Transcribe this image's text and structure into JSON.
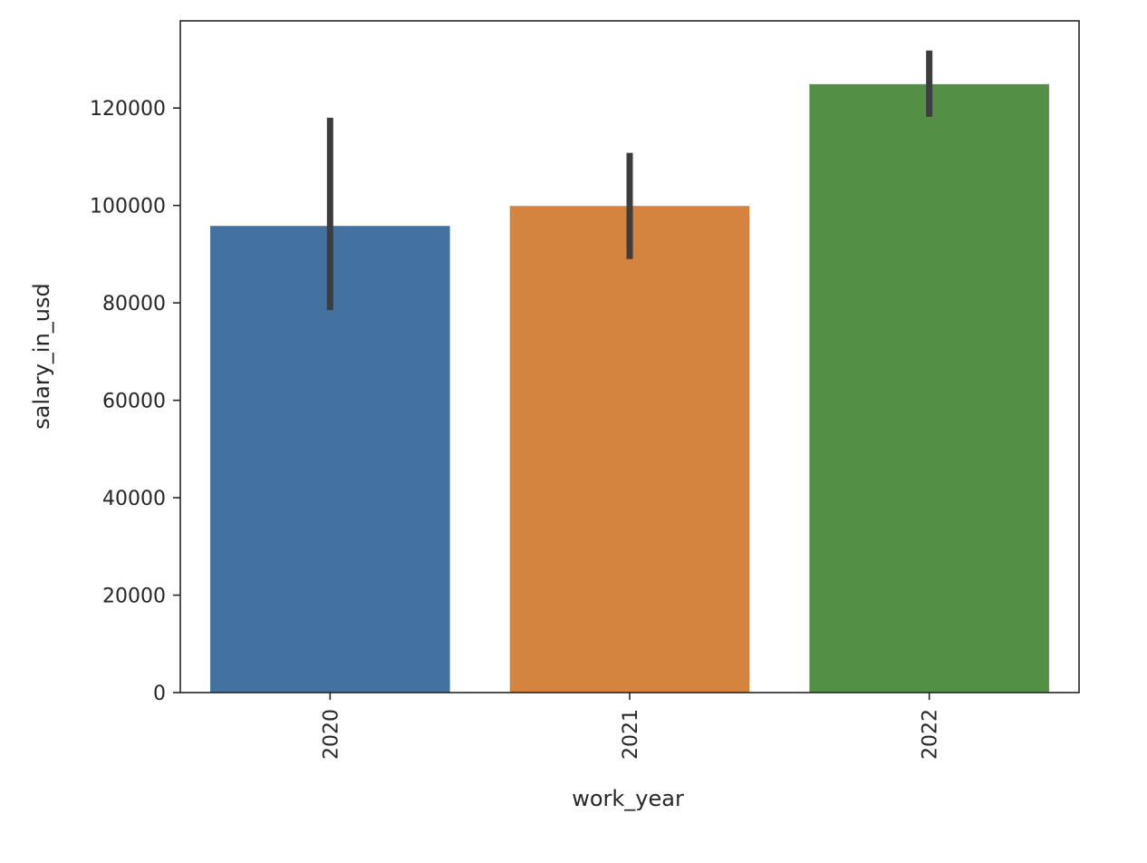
{
  "chart_data": {
    "type": "bar",
    "title": "",
    "xlabel": "work_year",
    "ylabel": "salary_in_usd",
    "categories": [
      "2020",
      "2021",
      "2022"
    ],
    "values": [
      95800,
      99900,
      124900
    ],
    "error_bars": [
      {
        "low": 78500,
        "high": 118000
      },
      {
        "low": 89000,
        "high": 110800
      },
      {
        "low": 118200,
        "high": 131800
      }
    ],
    "colors": [
      "#4472a0",
      "#d5843f",
      "#539045"
    ],
    "error_bar_color": "#3d3d3d",
    "ylim": [
      0,
      137900
    ],
    "yticks": [
      0,
      20000,
      40000,
      60000,
      80000,
      100000,
      120000
    ],
    "ytick_labels": [
      "0",
      "20000",
      "40000",
      "60000",
      "80000",
      "100000",
      "120000"
    ],
    "xtick_rotation": "vertical",
    "grid": false,
    "legend": "none"
  }
}
